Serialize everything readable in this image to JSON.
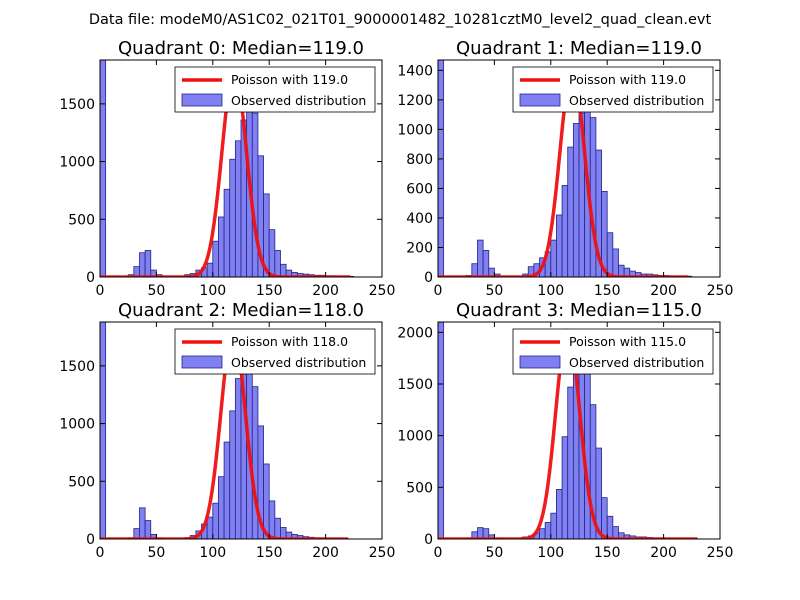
{
  "figure_title": "Data file: modeM0/AS1C02_021T01_9000001482_10281cztM0_level2_quad_clean.evt",
  "colors": {
    "bar_fill": "#8080f0",
    "bar_edge": "#24248a",
    "poisson_line": "#ee1111",
    "axes": "#000000"
  },
  "chart_data": [
    {
      "type": "bar",
      "title": "Quadrant 0: Median=119.0",
      "xlim": [
        0,
        250
      ],
      "ylim": [
        0,
        1880
      ],
      "xticks": [
        "0",
        "50",
        "100",
        "150",
        "200",
        "250"
      ],
      "yticks": [
        "0",
        "500",
        "1000",
        "1500"
      ],
      "legend": [
        "Poisson with 119.0",
        "Observed distribution"
      ],
      "legend_position": "top-right",
      "poisson": {
        "mean": 119.0,
        "peak": 1790,
        "sigma": 10.9,
        "x_range": [
          0,
          222
        ]
      },
      "histogram": {
        "bin_start": 0,
        "bin_width": 5,
        "counts": [
          1880,
          0,
          0,
          0,
          0,
          20,
          90,
          210,
          230,
          60,
          20,
          0,
          0,
          0,
          0,
          20,
          30,
          60,
          80,
          120,
          310,
          520,
          760,
          1020,
          1180,
          1360,
          1610,
          1420,
          1050,
          720,
          410,
          230,
          110,
          60,
          40,
          30,
          25,
          20,
          15,
          15,
          10,
          10,
          5,
          5,
          5
        ]
      }
    },
    {
      "type": "bar",
      "title": "Quadrant 1: Median=119.0",
      "xlim": [
        0,
        250
      ],
      "ylim": [
        0,
        1470
      ],
      "xticks": [
        "0",
        "50",
        "100",
        "150",
        "200",
        "250"
      ],
      "yticks": [
        "0",
        "200",
        "400",
        "600",
        "800",
        "1000",
        "1200",
        "1400"
      ],
      "legend": [
        "Poisson with 119.0",
        "Observed distribution"
      ],
      "legend_position": "top-right",
      "poisson": {
        "mean": 119.0,
        "peak": 1400,
        "sigma": 10.9,
        "x_range": [
          0,
          222
        ]
      },
      "histogram": {
        "bin_start": 0,
        "bin_width": 5,
        "counts": [
          1470,
          0,
          0,
          0,
          0,
          10,
          90,
          250,
          180,
          60,
          20,
          0,
          0,
          0,
          0,
          20,
          70,
          90,
          130,
          170,
          250,
          420,
          620,
          880,
          1040,
          1110,
          1260,
          1080,
          860,
          580,
          300,
          190,
          80,
          60,
          40,
          30,
          20,
          20,
          15,
          10,
          10,
          5,
          5,
          5,
          5
        ]
      }
    },
    {
      "type": "bar",
      "title": "Quadrant 2: Median=118.0",
      "xlim": [
        0,
        250
      ],
      "ylim": [
        0,
        1880
      ],
      "xticks": [
        "0",
        "50",
        "100",
        "150",
        "200",
        "250"
      ],
      "yticks": [
        "0",
        "500",
        "1000",
        "1500"
      ],
      "legend": [
        "Poisson with 118.0",
        "Observed distribution"
      ],
      "legend_position": "top-right",
      "poisson": {
        "mean": 118.0,
        "peak": 1800,
        "sigma": 10.9,
        "x_range": [
          0,
          220
        ]
      },
      "histogram": {
        "bin_start": 0,
        "bin_width": 5,
        "counts": [
          1880,
          0,
          0,
          0,
          0,
          10,
          90,
          270,
          160,
          40,
          10,
          0,
          0,
          0,
          0,
          10,
          30,
          70,
          130,
          190,
          310,
          540,
          840,
          1110,
          1390,
          1560,
          1660,
          1320,
          980,
          650,
          330,
          180,
          100,
          60,
          40,
          30,
          20,
          15,
          10,
          10,
          5,
          5,
          5,
          5
        ]
      }
    },
    {
      "type": "bar",
      "title": "Quadrant 3: Median=115.0",
      "xlim": [
        0,
        250
      ],
      "ylim": [
        0,
        2100
      ],
      "xticks": [
        "0",
        "50",
        "100",
        "150",
        "200",
        "250"
      ],
      "yticks": [
        "0",
        "500",
        "1000",
        "1500",
        "2000"
      ],
      "legend": [
        "Poisson with 115.0",
        "Observed distribution"
      ],
      "legend_position": "top-right",
      "poisson": {
        "mean": 115.0,
        "peak": 2020,
        "sigma": 10.7,
        "x_range": [
          0,
          230
        ]
      },
      "histogram": {
        "bin_start": 0,
        "bin_width": 5,
        "counts": [
          2100,
          0,
          0,
          0,
          0,
          10,
          70,
          110,
          100,
          40,
          10,
          0,
          0,
          0,
          0,
          20,
          30,
          60,
          100,
          160,
          250,
          480,
          990,
          1470,
          1830,
          1950,
          1780,
          1300,
          880,
          400,
          220,
          120,
          60,
          40,
          30,
          20,
          20,
          15,
          10,
          10,
          10,
          5,
          5,
          5,
          5,
          5
        ]
      }
    }
  ]
}
